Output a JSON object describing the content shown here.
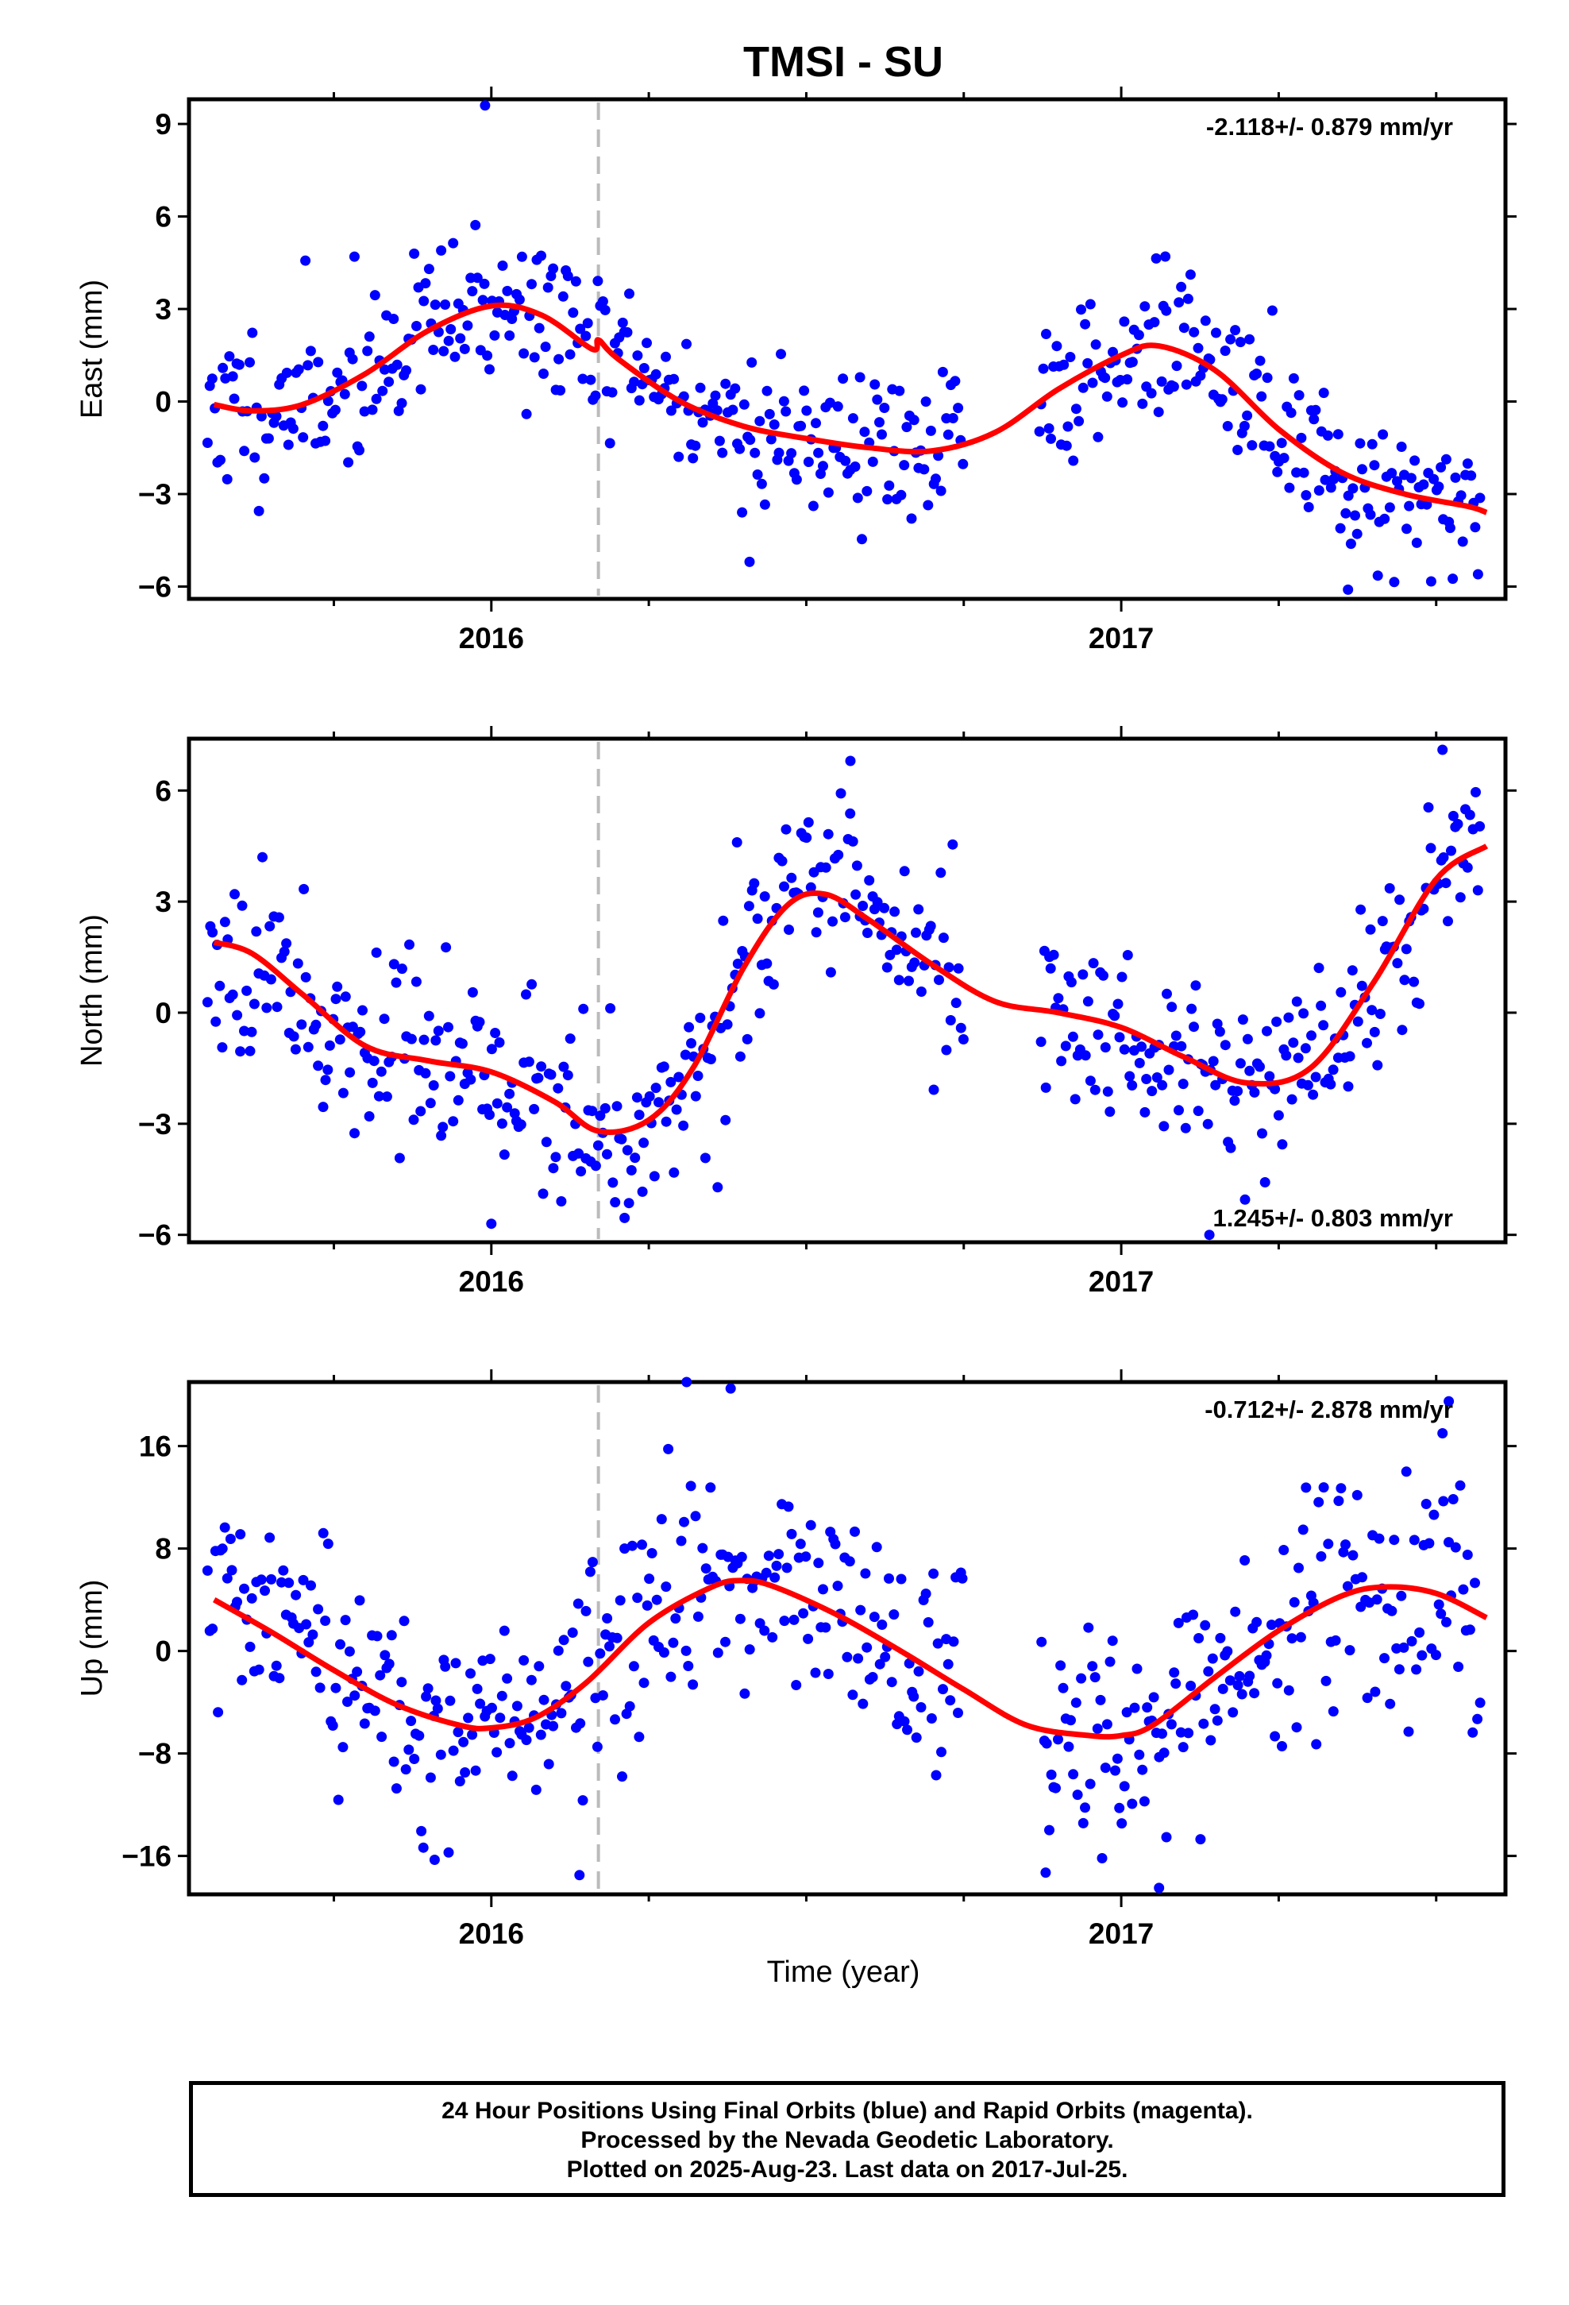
{
  "title": "TMSI - SU",
  "xlabel": "Time (year)",
  "footer": {
    "line1": "24 Hour Positions Using Final Orbits (blue) and Rapid Orbits (magenta).",
    "line2": "Processed by the Nevada Geodetic Laboratory.",
    "line3": "Plotted on 2025-Aug-23. Last data on 2017-Jul-25."
  },
  "colors": {
    "points": "#0000ff",
    "fit": "#ff0000",
    "event_line": "#bbbbbb",
    "axis": "#000000"
  },
  "chart_data": [
    {
      "type": "scatter",
      "name": "East",
      "ylabel": "East (mm)",
      "rate": "-2.118+/- 0.879 mm/yr",
      "rate_position": "top-right",
      "xlim": [
        2015.52,
        2017.61
      ],
      "ylim": [
        -6.4,
        9.8
      ],
      "yticks": [
        -6,
        -3,
        0,
        3,
        6,
        9
      ],
      "xticks": [
        2016,
        2017
      ],
      "xtick_labels": [
        "2016",
        "2017"
      ],
      "event_line_x": 2016.17,
      "fit": {
        "x": [
          2015.56,
          2015.62,
          2015.7,
          2015.8,
          2015.9,
          2016.0,
          2016.08,
          2016.16,
          2016.17,
          2016.2,
          2016.3,
          2016.4,
          2016.5,
          2016.6,
          2016.7,
          2016.8,
          2016.9,
          2017.0,
          2017.06,
          2017.15,
          2017.25,
          2017.35,
          2017.45,
          2017.55,
          2017.58
        ],
        "y": [
          -0.1,
          -0.3,
          -0.1,
          0.9,
          2.3,
          3.1,
          2.8,
          1.7,
          2.0,
          1.4,
          0.0,
          -0.8,
          -1.2,
          -1.5,
          -1.6,
          -1.0,
          0.4,
          1.5,
          1.8,
          1.0,
          -0.9,
          -2.3,
          -3.0,
          -3.4,
          -3.6
        ]
      },
      "points": {
        "seed": 11,
        "count": 520,
        "x_start": 2015.55,
        "x_end": 2017.57,
        "gaps": [
          [
            2016.75,
            2016.87
          ]
        ],
        "noise_sd": 1.3,
        "extremes": [
          [
            2015.99,
            9.6
          ],
          [
            2016.41,
            -5.2
          ],
          [
            2017.36,
            -6.1
          ],
          [
            2017.07,
            4.7
          ]
        ]
      }
    },
    {
      "type": "scatter",
      "name": "North",
      "ylabel": "North (mm)",
      "rate": "1.245+/- 0.803 mm/yr",
      "rate_position": "bottom-right",
      "xlim": [
        2015.52,
        2017.61
      ],
      "ylim": [
        -6.2,
        7.4
      ],
      "yticks": [
        -6,
        -3,
        0,
        3,
        6
      ],
      "xticks": [
        2016,
        2017
      ],
      "xtick_labels": [
        "2016",
        "2017"
      ],
      "event_line_x": 2016.17,
      "fit": {
        "x": [
          2015.56,
          2015.62,
          2015.7,
          2015.8,
          2015.9,
          2016.0,
          2016.1,
          2016.17,
          2016.25,
          2016.32,
          2016.4,
          2016.47,
          2016.53,
          2016.6,
          2016.7,
          2016.8,
          2016.9,
          2017.0,
          2017.1,
          2017.2,
          2017.3,
          2017.4,
          2017.5,
          2017.58
        ],
        "y": [
          1.9,
          1.6,
          0.5,
          -0.9,
          -1.3,
          -1.6,
          -2.4,
          -3.2,
          -2.9,
          -1.5,
          1.2,
          2.9,
          3.2,
          2.5,
          1.3,
          0.3,
          0.0,
          -0.4,
          -1.2,
          -1.9,
          -1.5,
          0.8,
          3.6,
          4.5
        ]
      },
      "points": {
        "seed": 23,
        "count": 520,
        "x_start": 2015.55,
        "x_end": 2017.57,
        "gaps": [
          [
            2016.75,
            2016.87
          ]
        ],
        "noise_sd": 1.25,
        "extremes": [
          [
            2017.51,
            7.1
          ],
          [
            2016.57,
            6.8
          ],
          [
            2016.0,
            -5.7
          ],
          [
            2017.14,
            -6.0
          ],
          [
            2016.39,
            4.6
          ]
        ]
      }
    },
    {
      "type": "scatter",
      "name": "Up",
      "ylabel": "Up (mm)",
      "rate": "-0.712+/- 2.878 mm/yr",
      "rate_position": "top-right",
      "xlim": [
        2015.52,
        2017.61
      ],
      "ylim": [
        -19,
        21
      ],
      "yticks": [
        -16,
        -8,
        0,
        8,
        16
      ],
      "xticks": [
        2016,
        2017
      ],
      "xtick_labels": [
        "2016",
        "2017"
      ],
      "event_line_x": 2016.17,
      "fit": {
        "x": [
          2015.56,
          2015.65,
          2015.75,
          2015.85,
          2015.95,
          2016.0,
          2016.07,
          2016.15,
          2016.25,
          2016.35,
          2016.4,
          2016.45,
          2016.55,
          2016.65,
          2016.75,
          2016.85,
          2016.95,
          2017.0,
          2017.05,
          2017.15,
          2017.25,
          2017.35,
          2017.42,
          2017.5,
          2017.58
        ],
        "y": [
          4.0,
          1.5,
          -1.5,
          -4.2,
          -5.8,
          -6.0,
          -5.2,
          -2.5,
          2.2,
          5.0,
          5.5,
          5.0,
          2.8,
          0.0,
          -3.0,
          -5.8,
          -6.6,
          -6.6,
          -5.8,
          -2.0,
          1.6,
          4.3,
          5.0,
          4.5,
          2.6
        ]
      },
      "points": {
        "seed": 37,
        "count": 520,
        "x_start": 2015.55,
        "x_end": 2017.57,
        "gaps": [
          [
            2016.75,
            2016.87
          ]
        ],
        "noise_sd": 4.2,
        "extremes": [
          [
            2016.31,
            21.0
          ],
          [
            2016.38,
            20.5
          ],
          [
            2017.52,
            19.5
          ],
          [
            2017.51,
            17.0
          ],
          [
            2017.06,
            -18.5
          ],
          [
            2015.91,
            -16.3
          ],
          [
            2016.14,
            -17.5
          ],
          [
            2016.88,
            -17.3
          ]
        ]
      }
    }
  ]
}
